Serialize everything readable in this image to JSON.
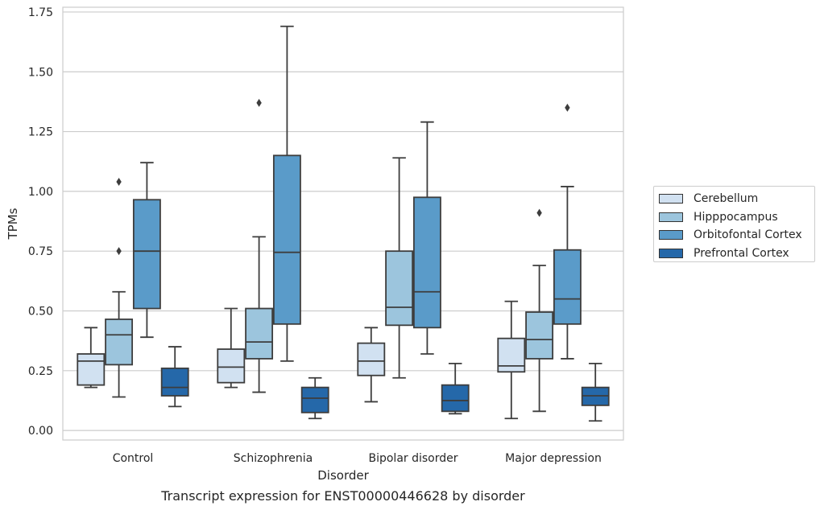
{
  "chart_data": {
    "type": "box",
    "caption": "Transcript expression for ENST00000446628 by disorder",
    "xlabel": "Disorder",
    "ylabel": "TPMs",
    "ylim": [
      -0.04,
      1.77
    ],
    "yticks": [
      "0.00",
      "0.25",
      "0.50",
      "0.75",
      "1.00",
      "1.25",
      "1.50",
      "1.75"
    ],
    "grid": "horizontal",
    "legend_position": "right",
    "categories": [
      "Control",
      "Schizophrenia",
      "Bipolar disorder",
      "Major depression"
    ],
    "series": [
      {
        "name": "Cerebellum",
        "color": "#d1e1f1",
        "boxes": [
          {
            "whislo": 0.18,
            "q1": 0.19,
            "med": 0.29,
            "q3": 0.32,
            "whishi": 0.43,
            "fliers": []
          },
          {
            "whislo": 0.18,
            "q1": 0.2,
            "med": 0.265,
            "q3": 0.34,
            "whishi": 0.51,
            "fliers": []
          },
          {
            "whislo": 0.12,
            "q1": 0.23,
            "med": 0.29,
            "q3": 0.365,
            "whishi": 0.43,
            "fliers": []
          },
          {
            "whislo": 0.05,
            "q1": 0.245,
            "med": 0.27,
            "q3": 0.385,
            "whishi": 0.54,
            "fliers": []
          }
        ]
      },
      {
        "name": "Hipppocampus",
        "color": "#9cc5dd",
        "boxes": [
          {
            "whislo": 0.14,
            "q1": 0.275,
            "med": 0.4,
            "q3": 0.465,
            "whishi": 0.58,
            "fliers": [
              0.75,
              1.04
            ]
          },
          {
            "whislo": 0.16,
            "q1": 0.3,
            "med": 0.37,
            "q3": 0.51,
            "whishi": 0.81,
            "fliers": [
              1.37
            ]
          },
          {
            "whislo": 0.22,
            "q1": 0.44,
            "med": 0.515,
            "q3": 0.75,
            "whishi": 1.14,
            "fliers": []
          },
          {
            "whislo": 0.08,
            "q1": 0.3,
            "med": 0.38,
            "q3": 0.495,
            "whishi": 0.69,
            "fliers": [
              0.91
            ]
          }
        ]
      },
      {
        "name": "Orbitofontal Cortex",
        "color": "#5a9bc9",
        "boxes": [
          {
            "whislo": 0.39,
            "q1": 0.51,
            "med": 0.75,
            "q3": 0.965,
            "whishi": 1.12,
            "fliers": []
          },
          {
            "whislo": 0.29,
            "q1": 0.445,
            "med": 0.745,
            "q3": 1.15,
            "whishi": 1.69,
            "fliers": []
          },
          {
            "whislo": 0.32,
            "q1": 0.43,
            "med": 0.58,
            "q3": 0.975,
            "whishi": 1.29,
            "fliers": []
          },
          {
            "whislo": 0.3,
            "q1": 0.445,
            "med": 0.55,
            "q3": 0.755,
            "whishi": 1.02,
            "fliers": [
              1.35
            ]
          }
        ]
      },
      {
        "name": "Prefrontal Cortex",
        "color": "#2568a9",
        "boxes": [
          {
            "whislo": 0.1,
            "q1": 0.145,
            "med": 0.18,
            "q3": 0.26,
            "whishi": 0.35,
            "fliers": []
          },
          {
            "whislo": 0.05,
            "q1": 0.075,
            "med": 0.135,
            "q3": 0.18,
            "whishi": 0.22,
            "fliers": []
          },
          {
            "whislo": 0.07,
            "q1": 0.08,
            "med": 0.125,
            "q3": 0.19,
            "whishi": 0.28,
            "fliers": []
          },
          {
            "whislo": 0.04,
            "q1": 0.105,
            "med": 0.145,
            "q3": 0.18,
            "whishi": 0.28,
            "fliers": []
          }
        ]
      }
    ]
  }
}
